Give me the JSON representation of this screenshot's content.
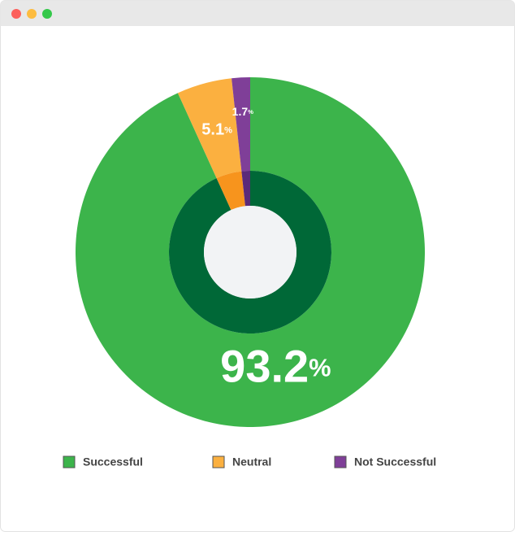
{
  "chart_data": {
    "type": "pie",
    "categories": [
      "Successful",
      "Neutral",
      "Not Successful"
    ],
    "values": [
      93.2,
      5.1,
      1.7
    ],
    "value_labels": [
      "93.2%",
      "5.1%",
      "1.7%"
    ],
    "colors": [
      "#3cb44b",
      "#fbb040",
      "#7f3f98"
    ],
    "inner_colors": [
      "#006837",
      "#f7941d",
      "#5b2a7a"
    ],
    "legend": "bottom"
  }
}
